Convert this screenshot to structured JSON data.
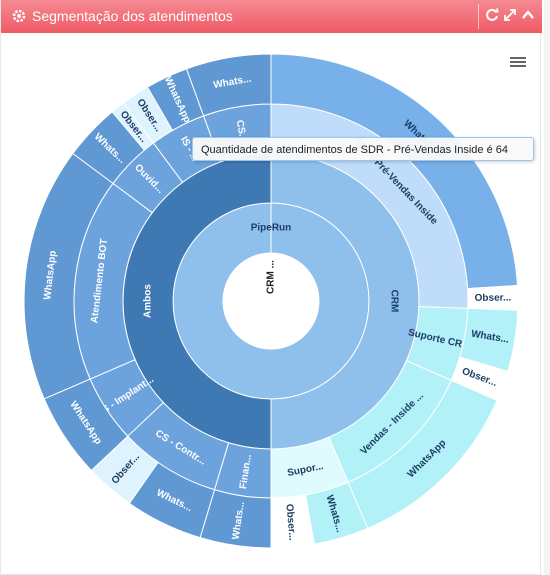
{
  "header": {
    "title": "Segmentação dos atendimentos",
    "icons": [
      "gear-icon",
      "refresh-icon",
      "expand-icon",
      "collapse-icon"
    ]
  },
  "menu": {
    "icon": "hamburger-menu-icon"
  },
  "tooltip": {
    "text": "Quantidade de atendimentos de SDR - Pré-Vendas Inside é 64"
  },
  "colors": {
    "header": "#ee5a65",
    "ambos": "#3f79b4",
    "crm": "#8fc0ec",
    "ambos_children": "#6ca3dc",
    "crm_children": "#bfdcfa",
    "light": "#e0fbfd",
    "cyan": "#b2f1f7"
  },
  "chart_data": {
    "type": "sunburst",
    "center": "CRM ...",
    "nodes": [
      {
        "label": "PipeRun",
        "value": 100,
        "children": [
          {
            "label": "CRM",
            "value": 50,
            "children": [
              {
                "label": "SDR - Pré-Vendas Inside",
                "value": 64,
                "children": [
                  {
                    "label": "WhatsApp",
                    "value": 60
                  },
                  {
                    "label": "Obser...",
                    "value": 4
                  }
                ]
              },
              {
                "label": "Suporte CR...",
                "value": 15,
                "children": [
                  {
                    "label": "Whats...",
                    "value": 10
                  },
                  {
                    "label": "Obser...",
                    "value": 5
                  }
                ]
              },
              {
                "label": "Vendas - Inside ...",
                "value": 30,
                "children": [
                  {
                    "label": "WhatsApp",
                    "value": 30
                  }
                ]
              },
              {
                "label": "Supor...",
                "value": 16,
                "children": [
                  {
                    "label": "Whats...",
                    "value": 9
                  },
                  {
                    "label": "Obser...",
                    "value": 7
                  }
                ]
              }
            ]
          },
          {
            "label": "Ambos",
            "value": 50,
            "children": [
              {
                "label": "Finan...",
                "value": 10,
                "children": [
                  {
                    "label": "Whats...",
                    "value": 10
                  }
                ]
              },
              {
                "label": "CS - Contr...",
                "value": 18,
                "children": [
                  {
                    "label": "Whats...",
                    "value": 11
                  },
                  {
                    "label": "Obser...",
                    "value": 7
                  }
                ]
              },
              {
                "label": "IS - Implant...",
                "value": 12,
                "children": [
                  {
                    "label": "WhatsApp",
                    "value": 12
                  }
                ]
              },
              {
                "label": "Atendimento BOT",
                "value": 36,
                "children": [
                  {
                    "label": "WhatsApp",
                    "value": 36
                  }
                ]
              },
              {
                "label": "Ouvid...",
                "value": 10,
                "children": [
                  {
                    "label": "Whats...",
                    "value": 8
                  },
                  {
                    "label": "Obser...",
                    "value": 2
                  }
                ]
              },
              {
                "label": "IS - ...",
                "value": 10,
                "children": [
                  {
                    "label": "Obser...",
                    "value": 4
                  },
                  {
                    "label": "WhatsApp",
                    "value": 6
                  }
                ]
              },
              {
                "label": "CS...",
                "value": 12,
                "children": [
                  {
                    "label": "Whats...",
                    "value": 12
                  }
                ]
              }
            ]
          }
        ]
      }
    ]
  }
}
